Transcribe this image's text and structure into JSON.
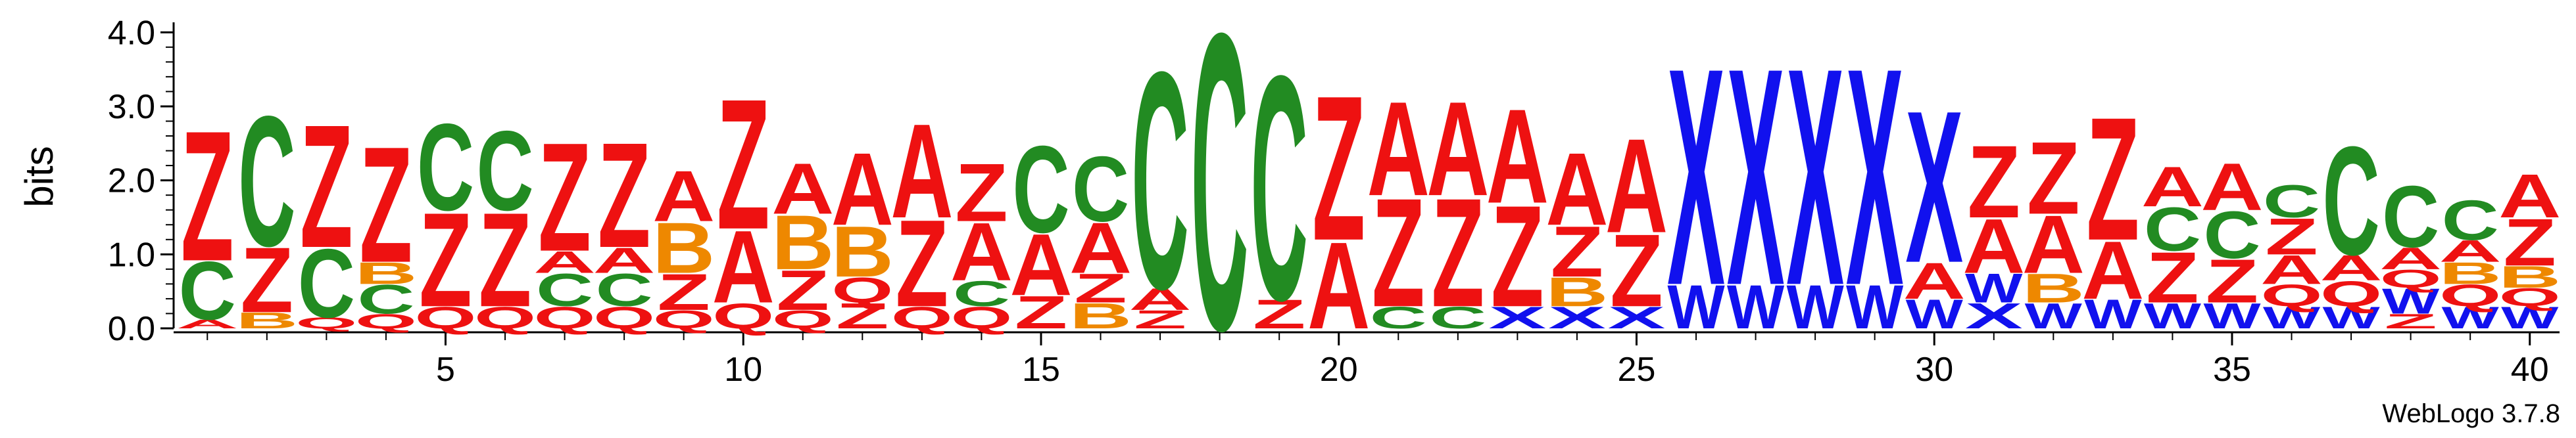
{
  "credit": "WebLogo 3.7.8",
  "colors": {
    "A": "#ee1111",
    "Z": "#ee1111",
    "X": "#1111ee",
    "W": "#1111ee",
    "C": "#228B22",
    "B": "#ee8800",
    "Q": "#ee1111"
  },
  "chart_data": {
    "type": "sequence-logo",
    "ylabel": "bits",
    "ylim": [
      0,
      4.1
    ],
    "yticks": [
      "0.0",
      "1.0",
      "2.0",
      "3.0",
      "4.0"
    ],
    "xticks": [
      5,
      10,
      15,
      20,
      25,
      30,
      35,
      40
    ],
    "positions": [
      {
        "pos": 1,
        "stack": [
          [
            "A",
            0.12
          ],
          [
            "C",
            0.8
          ],
          [
            "Z",
            1.8
          ]
        ]
      },
      {
        "pos": 2,
        "stack": [
          [
            "B",
            0.22
          ],
          [
            "Z",
            0.9
          ],
          [
            "C",
            1.8
          ]
        ]
      },
      {
        "pos": 3,
        "stack": [
          [
            "Q",
            0.15
          ],
          [
            "C",
            0.95
          ],
          [
            "Z",
            1.7
          ]
        ]
      },
      {
        "pos": 4,
        "stack": [
          [
            "Q",
            0.2
          ],
          [
            "C",
            0.4
          ],
          [
            "B",
            0.3
          ],
          [
            "Z",
            1.6
          ]
        ]
      },
      {
        "pos": 5,
        "stack": [
          [
            "Q",
            0.3
          ],
          [
            "Z",
            1.3
          ],
          [
            "C",
            1.2
          ]
        ]
      },
      {
        "pos": 6,
        "stack": [
          [
            "Q",
            0.3
          ],
          [
            "Z",
            1.3
          ],
          [
            "C",
            1.1
          ]
        ]
      },
      {
        "pos": 7,
        "stack": [
          [
            "Q",
            0.3
          ],
          [
            "C",
            0.45
          ],
          [
            "A",
            0.3
          ],
          [
            "Z",
            1.5
          ]
        ]
      },
      {
        "pos": 8,
        "stack": [
          [
            "Q",
            0.3
          ],
          [
            "C",
            0.45
          ],
          [
            "A",
            0.35
          ],
          [
            "Z",
            1.45
          ]
        ]
      },
      {
        "pos": 9,
        "stack": [
          [
            "Q",
            0.25
          ],
          [
            "Z",
            0.5
          ],
          [
            "B",
            0.7
          ],
          [
            "A",
            0.7
          ]
        ]
      },
      {
        "pos": 10,
        "stack": [
          [
            "Q",
            0.35
          ],
          [
            "A",
            1.0
          ],
          [
            "Z",
            1.8
          ]
        ]
      },
      {
        "pos": 11,
        "stack": [
          [
            "Q",
            0.25
          ],
          [
            "Z",
            0.55
          ],
          [
            "B",
            0.75
          ],
          [
            "A",
            0.7
          ]
        ]
      },
      {
        "pos": 12,
        "stack": [
          [
            "Z",
            0.35
          ],
          [
            "Q",
            0.35
          ],
          [
            "B",
            0.7
          ],
          [
            "A",
            1.0
          ]
        ]
      },
      {
        "pos": 13,
        "stack": [
          [
            "Q",
            0.3
          ],
          [
            "Z",
            1.2
          ],
          [
            "A",
            1.3
          ]
        ]
      },
      {
        "pos": 14,
        "stack": [
          [
            "Q",
            0.3
          ],
          [
            "C",
            0.35
          ],
          [
            "A",
            0.8
          ],
          [
            "Z",
            0.8
          ]
        ]
      },
      {
        "pos": 15,
        "stack": [
          [
            "Z",
            0.45
          ],
          [
            "A",
            0.85
          ],
          [
            "C",
            1.2
          ]
        ]
      },
      {
        "pos": 16,
        "stack": [
          [
            "B",
            0.35
          ],
          [
            "Z",
            0.4
          ],
          [
            "A",
            0.7
          ],
          [
            "C",
            0.9
          ]
        ]
      },
      {
        "pos": 17,
        "stack": [
          [
            "Z",
            0.25
          ],
          [
            "A",
            0.3
          ],
          [
            "C",
            3.0
          ]
        ]
      },
      {
        "pos": 18,
        "stack": [
          [
            "C",
            4.1
          ]
        ]
      },
      {
        "pos": 19,
        "stack": [
          [
            "Z",
            0.4
          ],
          [
            "C",
            3.1
          ]
        ]
      },
      {
        "pos": 20,
        "stack": [
          [
            "A",
            1.2
          ],
          [
            "Z",
            2.0
          ]
        ]
      },
      {
        "pos": 21,
        "stack": [
          [
            "C",
            0.3
          ],
          [
            "Z",
            1.5
          ],
          [
            "A",
            1.3
          ]
        ]
      },
      {
        "pos": 22,
        "stack": [
          [
            "C",
            0.3
          ],
          [
            "Z",
            1.5
          ],
          [
            "A",
            1.3
          ]
        ]
      },
      {
        "pos": 23,
        "stack": [
          [
            "X",
            0.3
          ],
          [
            "Z",
            1.4
          ],
          [
            "A",
            1.3
          ]
        ]
      },
      {
        "pos": 24,
        "stack": [
          [
            "X",
            0.3
          ],
          [
            "B",
            0.4
          ],
          [
            "Z",
            0.7
          ],
          [
            "A",
            1.0
          ]
        ]
      },
      {
        "pos": 25,
        "stack": [
          [
            "X",
            0.3
          ],
          [
            "Z",
            1.0
          ],
          [
            "A",
            1.3
          ]
        ]
      },
      {
        "pos": 26,
        "stack": [
          [
            "W",
            0.6
          ],
          [
            "X",
            3.0
          ]
        ]
      },
      {
        "pos": 27,
        "stack": [
          [
            "W",
            0.6
          ],
          [
            "X",
            3.0
          ]
        ]
      },
      {
        "pos": 28,
        "stack": [
          [
            "W",
            0.6
          ],
          [
            "X",
            3.0
          ]
        ]
      },
      {
        "pos": 29,
        "stack": [
          [
            "W",
            0.6
          ],
          [
            "X",
            3.0
          ]
        ]
      },
      {
        "pos": 30,
        "stack": [
          [
            "W",
            0.4
          ],
          [
            "A",
            0.5
          ],
          [
            "X",
            2.1
          ]
        ]
      },
      {
        "pos": 31,
        "stack": [
          [
            "X",
            0.35
          ],
          [
            "W",
            0.4
          ],
          [
            "A",
            0.75
          ],
          [
            "Z",
            1.0
          ]
        ]
      },
      {
        "pos": 32,
        "stack": [
          [
            "W",
            0.35
          ],
          [
            "B",
            0.4
          ],
          [
            "A",
            0.8
          ],
          [
            "Z",
            1.0
          ]
        ]
      },
      {
        "pos": 33,
        "stack": [
          [
            "W",
            0.4
          ],
          [
            "A",
            0.8
          ],
          [
            "Z",
            1.7
          ]
        ]
      },
      {
        "pos": 34,
        "stack": [
          [
            "W",
            0.35
          ],
          [
            "Z",
            0.7
          ],
          [
            "C",
            0.6
          ],
          [
            "A",
            0.55
          ]
        ]
      },
      {
        "pos": 35,
        "stack": [
          [
            "W",
            0.35
          ],
          [
            "Z",
            0.6
          ],
          [
            "C",
            0.65
          ],
          [
            "A",
            0.65
          ]
        ]
      },
      {
        "pos": 36,
        "stack": [
          [
            "W",
            0.3
          ],
          [
            "Q",
            0.3
          ],
          [
            "A",
            0.4
          ],
          [
            "Z",
            0.5
          ],
          [
            "C",
            0.45
          ]
        ]
      },
      {
        "pos": 37,
        "stack": [
          [
            "W",
            0.3
          ],
          [
            "Q",
            0.35
          ],
          [
            "A",
            0.35
          ],
          [
            "C",
            1.5
          ]
        ]
      },
      {
        "pos": 38,
        "stack": [
          [
            "Z",
            0.2
          ],
          [
            "W",
            0.35
          ],
          [
            "Q",
            0.25
          ],
          [
            "A",
            0.3
          ],
          [
            "C",
            0.85
          ]
        ]
      },
      {
        "pos": 39,
        "stack": [
          [
            "W",
            0.3
          ],
          [
            "Q",
            0.3
          ],
          [
            "B",
            0.3
          ],
          [
            "A",
            0.3
          ],
          [
            "C",
            0.55
          ]
        ]
      },
      {
        "pos": 40,
        "stack": [
          [
            "W",
            0.3
          ],
          [
            "Q",
            0.25
          ],
          [
            "B",
            0.3
          ],
          [
            "Z",
            0.65
          ],
          [
            "A",
            0.6
          ]
        ]
      }
    ]
  }
}
